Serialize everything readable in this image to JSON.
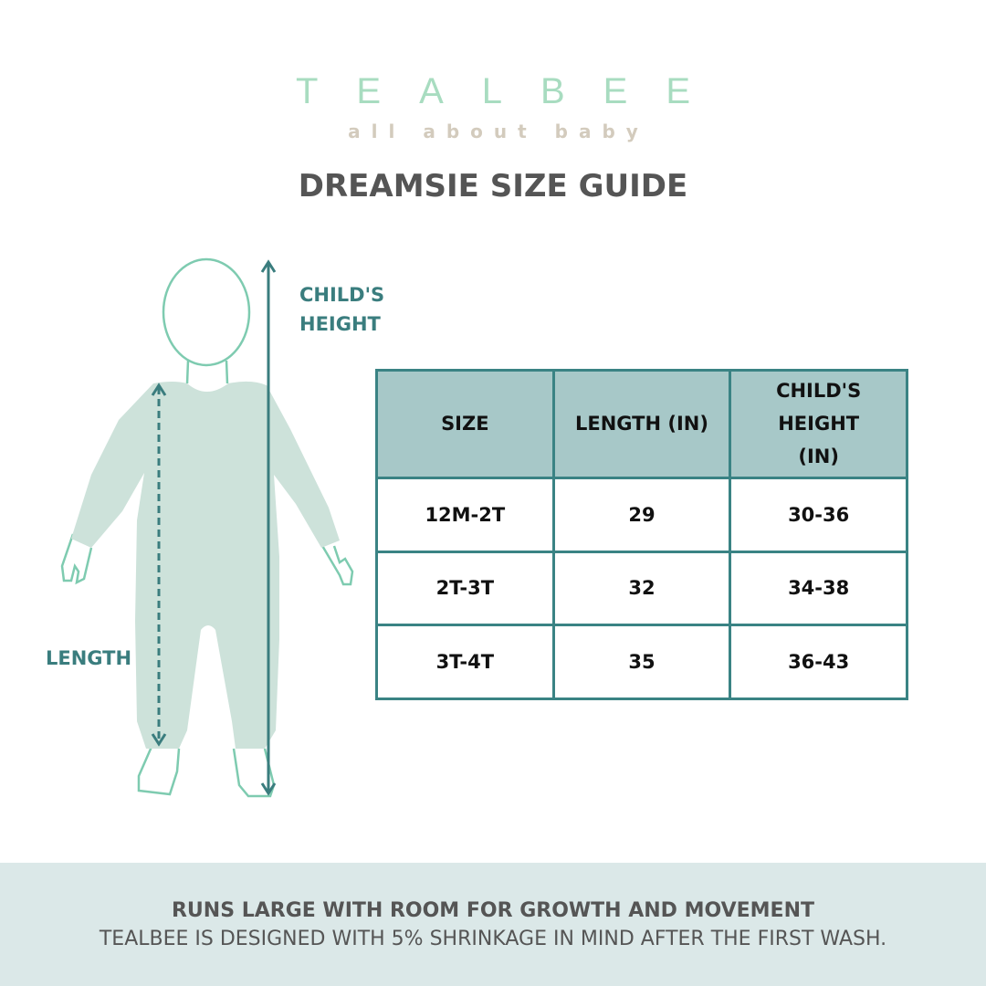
{
  "logo": {
    "brand": "TEALBEE",
    "tagline": "all about baby"
  },
  "title": "DREAMSIE SIZE GUIDE",
  "diagram": {
    "height_label_line1": "CHILD'S",
    "height_label_line2": "HEIGHT",
    "length_label": "LENGTH"
  },
  "table": {
    "headers": [
      "SIZE",
      "LENGTH (IN)",
      "CHILD'S HEIGHT (IN)"
    ],
    "rows": [
      [
        "12M-2T",
        "29",
        "30-36"
      ],
      [
        "2T-3T",
        "32",
        "34-38"
      ],
      [
        "3T-4T",
        "35",
        "36-43"
      ]
    ]
  },
  "footer": {
    "headline": "RUNS LARGE WITH ROOM FOR GROWTH AND MOVEMENT",
    "note": "TEALBEE IS DESIGNED WITH 5% SHRINKAGE IN MIND AFTER THE FIRST WASH."
  },
  "colors": {
    "teal": "#3a7d7e",
    "header_bg": "#a7c8c8",
    "romper": "#cde2da",
    "outline": "#7ecbb0",
    "footer_bg": "#dbe8e8"
  }
}
